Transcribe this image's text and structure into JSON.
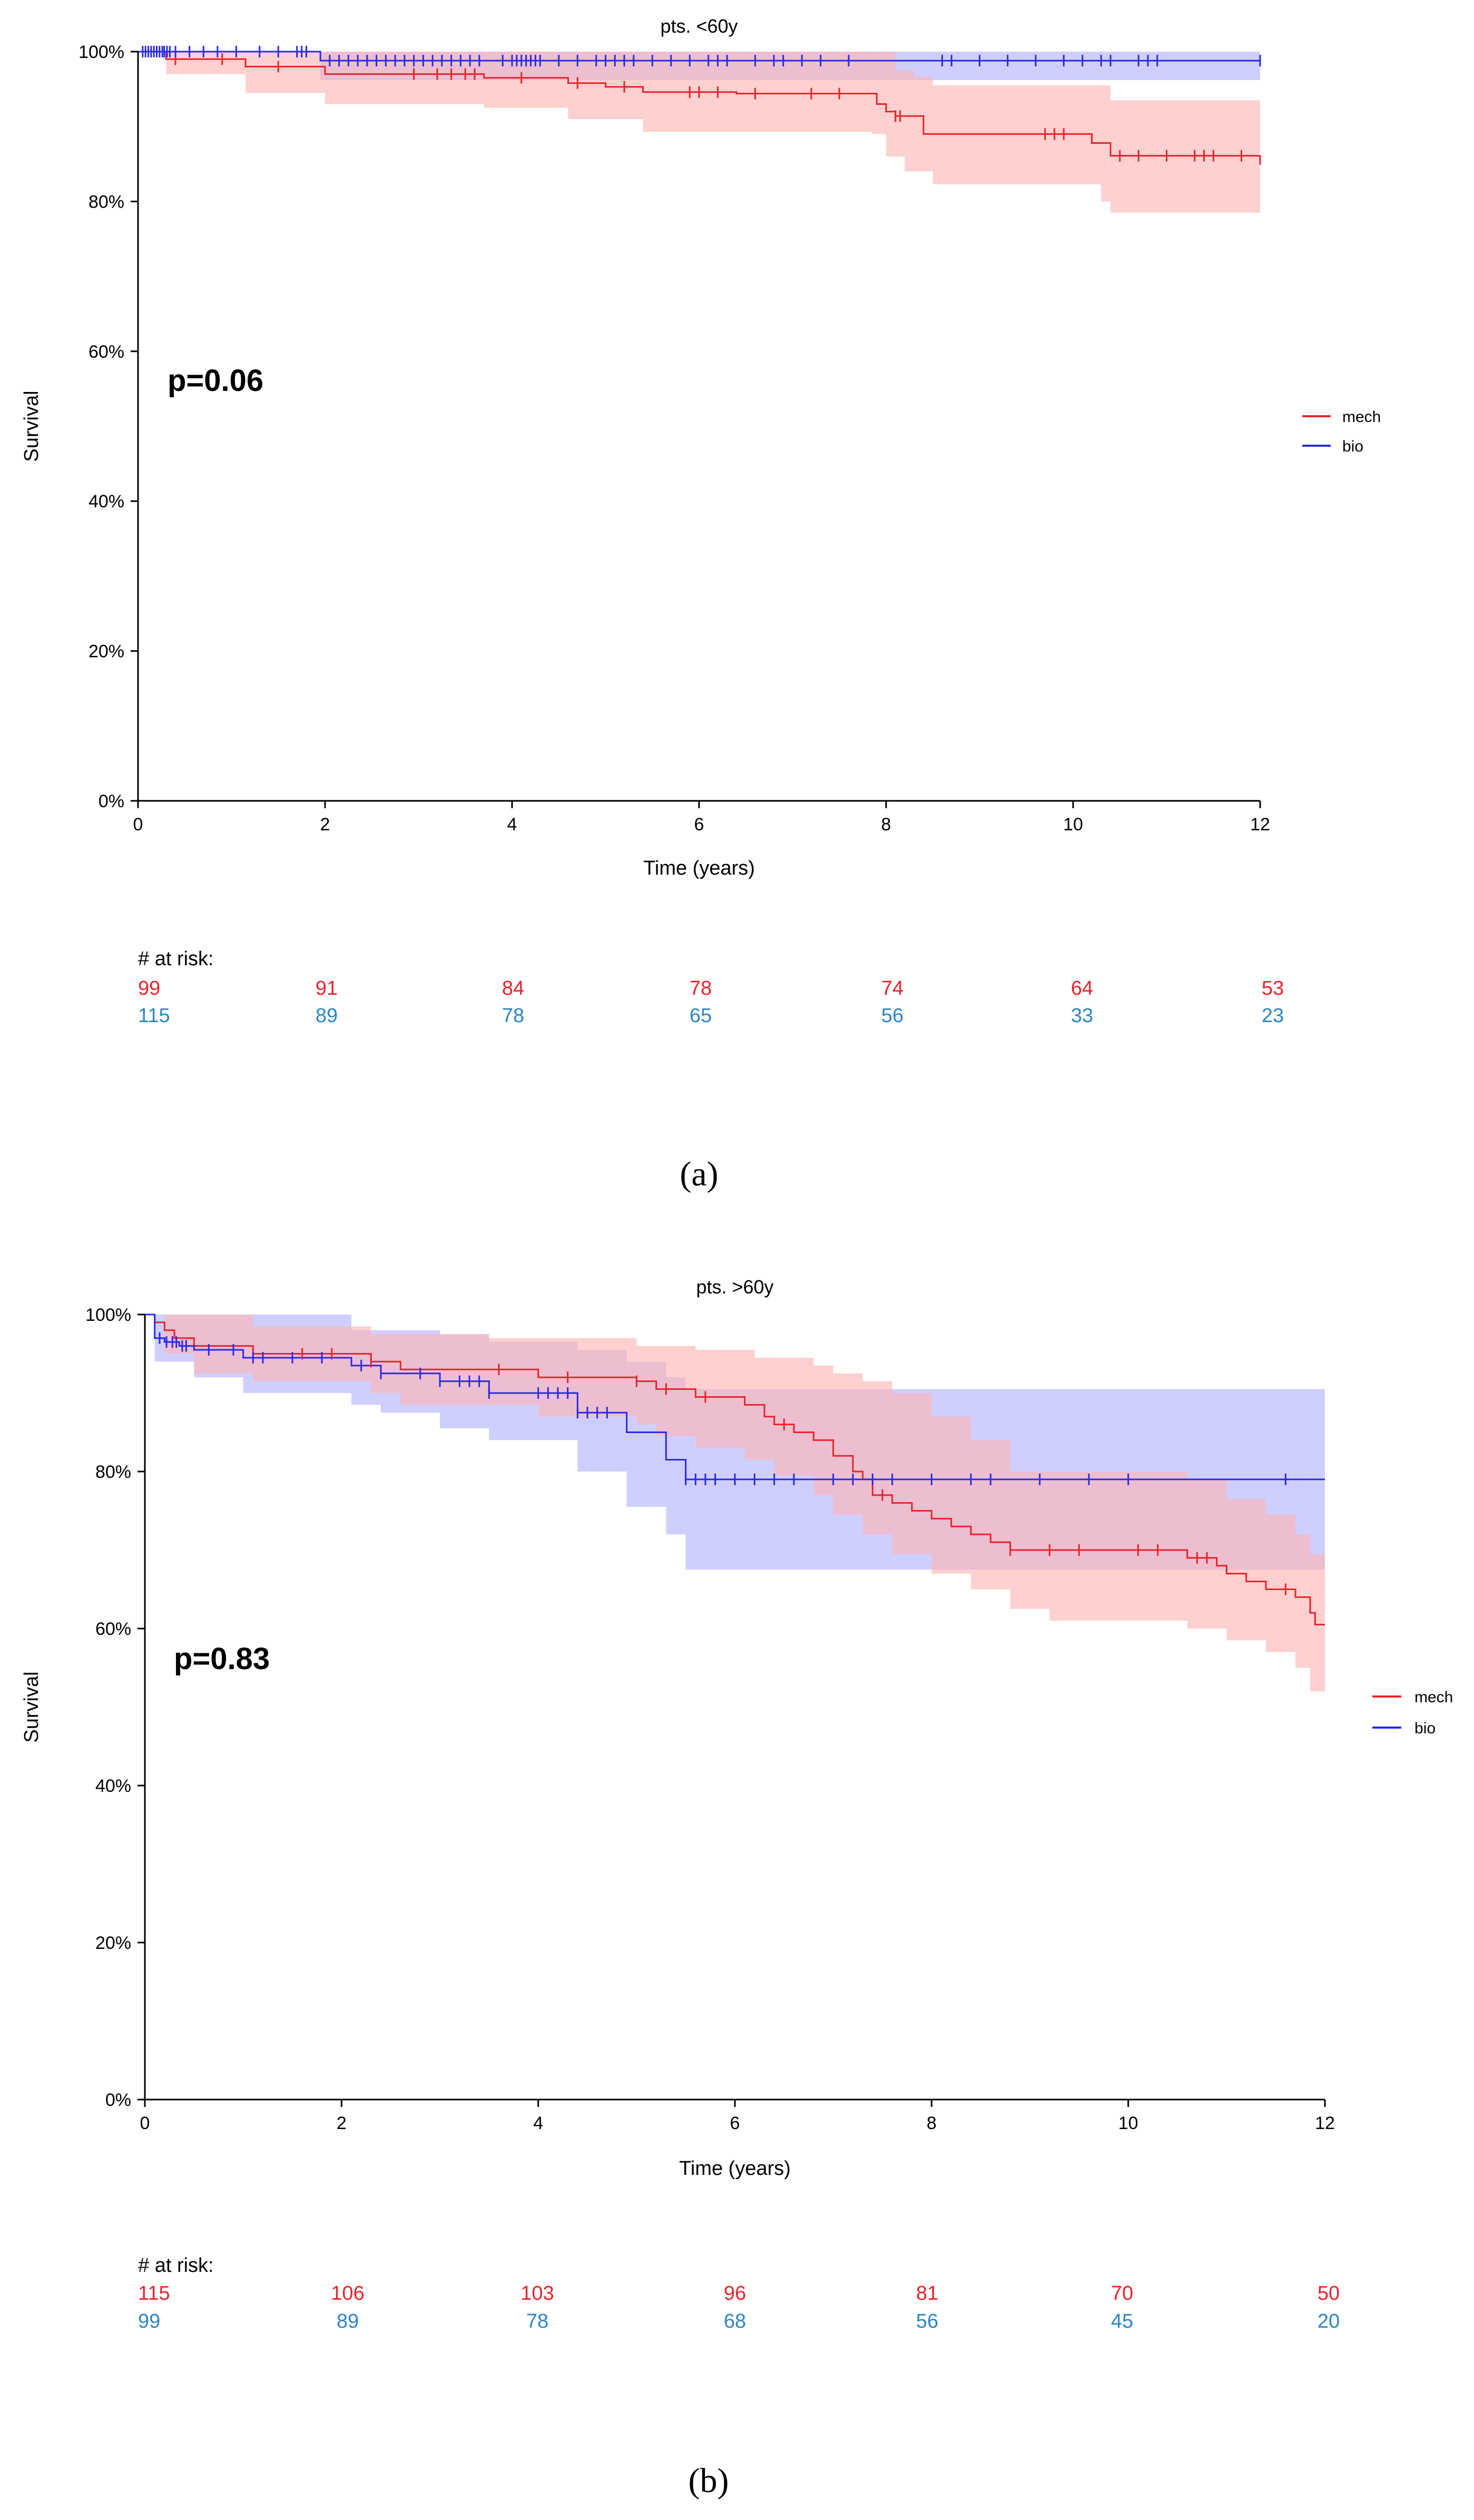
{
  "colors": {
    "mech": "#e8242b",
    "bio": "#2a2ae8",
    "mech_ci": "#ffb3b3",
    "bio_ci": "#b8b8ff",
    "risk_mech": "#e8242b",
    "risk_bio": "#2e86c1"
  },
  "chart_data": [
    {
      "type": "line",
      "subtype": "kaplan-meier",
      "panel_label": "(a)",
      "title": "pts. <60y",
      "xlabel": "Time (years)",
      "ylabel": "Survival",
      "xlim": [
        0,
        12
      ],
      "ylim": [
        0,
        1
      ],
      "x_ticks": [
        "0",
        "2",
        "4",
        "6",
        "8",
        "10",
        "12"
      ],
      "y_ticks": [
        "0%",
        "20%",
        "40%",
        "60%",
        "80%",
        "100%"
      ],
      "annotation": "p=0.06",
      "legend_position": "right",
      "legend": [
        "mech",
        "bio"
      ],
      "series": [
        {
          "name": "mech",
          "steps": [
            [
              0,
              1.0
            ],
            [
              0.3,
              0.99
            ],
            [
              1.15,
              0.98
            ],
            [
              2.0,
              0.97
            ],
            [
              3.7,
              0.965
            ],
            [
              4.6,
              0.958
            ],
            [
              5.0,
              0.953
            ],
            [
              5.4,
              0.946
            ],
            [
              6.4,
              0.944
            ],
            [
              7.9,
              0.93
            ],
            [
              8.0,
              0.92
            ],
            [
              8.1,
              0.914
            ],
            [
              8.4,
              0.89
            ],
            [
              10.2,
              0.878
            ],
            [
              10.4,
              0.861
            ],
            [
              12.0,
              0.849
            ]
          ],
          "upper": [
            [
              0,
              1.0
            ],
            [
              8.0,
              1.0
            ],
            [
              8.1,
              0.975
            ],
            [
              8.3,
              0.966
            ],
            [
              8.5,
              0.955
            ],
            [
              10.4,
              0.935
            ],
            [
              12.0,
              0.935
            ]
          ],
          "lower": [
            [
              0,
              1.0
            ],
            [
              0.3,
              0.97
            ],
            [
              1.15,
              0.945
            ],
            [
              2.0,
              0.93
            ],
            [
              3.7,
              0.925
            ],
            [
              4.6,
              0.91
            ],
            [
              5.4,
              0.893
            ],
            [
              7.85,
              0.89
            ],
            [
              8.0,
              0.86
            ],
            [
              8.2,
              0.84
            ],
            [
              8.5,
              0.823
            ],
            [
              10.3,
              0.8
            ],
            [
              10.4,
              0.785
            ],
            [
              12.0,
              0.785
            ]
          ],
          "censors": [
            0.4,
            0.9,
            1.5,
            2.95,
            3.2,
            3.35,
            3.5,
            3.6,
            4.1,
            4.7,
            5.2,
            5.9,
            6.0,
            6.2,
            6.6,
            7.2,
            7.5,
            8.1,
            8.15,
            9.7,
            9.8,
            9.9,
            10.5,
            10.7,
            11.0,
            11.3,
            11.4,
            11.5,
            11.8
          ]
        },
        {
          "name": "bio",
          "steps": [
            [
              0,
              1.0
            ],
            [
              1.95,
              0.988
            ],
            [
              12.0,
              0.988
            ]
          ],
          "upper": [
            [
              0,
              1.0
            ],
            [
              12.0,
              1.0
            ]
          ],
          "lower": [
            [
              0,
              1.0
            ],
            [
              1.95,
              0.962
            ],
            [
              12.0,
              0.962
            ]
          ],
          "censors": [
            0.05,
            0.08,
            0.11,
            0.14,
            0.17,
            0.2,
            0.23,
            0.26,
            0.28,
            0.31,
            0.34,
            0.4,
            0.55,
            0.7,
            0.85,
            1.05,
            1.3,
            1.5,
            1.7,
            1.75,
            1.8,
            2.05,
            2.15,
            2.25,
            2.35,
            2.45,
            2.55,
            2.65,
            2.75,
            2.85,
            2.95,
            3.05,
            3.15,
            3.25,
            3.35,
            3.45,
            3.55,
            3.65,
            3.9,
            4.0,
            4.05,
            4.1,
            4.15,
            4.2,
            4.25,
            4.3,
            4.5,
            4.7,
            4.9,
            5.0,
            5.1,
            5.2,
            5.3,
            5.5,
            5.7,
            5.9,
            6.1,
            6.2,
            6.3,
            6.6,
            6.8,
            6.9,
            7.1,
            7.3,
            7.6,
            8.6,
            8.7,
            9.0,
            9.3,
            9.6,
            9.9,
            10.1,
            10.3,
            10.4,
            10.7,
            10.8,
            10.9,
            12.0
          ]
        }
      ],
      "risk_table": {
        "header": "# at risk:",
        "mech": [
          "99",
          "91",
          "84",
          "78",
          "74",
          "64",
          "53"
        ],
        "bio": [
          "115",
          "89",
          "78",
          "65",
          "56",
          "33",
          "23"
        ]
      }
    },
    {
      "type": "line",
      "subtype": "kaplan-meier",
      "panel_label": "(b)",
      "title": "pts. >60y",
      "xlabel": "Time (years)",
      "ylabel": "Survival",
      "xlim": [
        0,
        12
      ],
      "ylim": [
        0,
        1
      ],
      "x_ticks": [
        "0",
        "2",
        "4",
        "6",
        "8",
        "10",
        "12"
      ],
      "y_ticks": [
        "0%",
        "20%",
        "40%",
        "60%",
        "80%",
        "100%"
      ],
      "annotation": "p=0.83",
      "legend_position": "right",
      "legend": [
        "mech",
        "bio"
      ],
      "series": [
        {
          "name": "mech",
          "steps": [
            [
              0,
              1.0
            ],
            [
              0.1,
              0.99
            ],
            [
              0.2,
              0.98
            ],
            [
              0.3,
              0.97
            ],
            [
              0.5,
              0.96
            ],
            [
              1.1,
              0.95
            ],
            [
              2.3,
              0.94
            ],
            [
              2.6,
              0.93
            ],
            [
              4.0,
              0.92
            ],
            [
              5.0,
              0.915
            ],
            [
              5.2,
              0.905
            ],
            [
              5.6,
              0.895
            ],
            [
              6.1,
              0.885
            ],
            [
              6.3,
              0.87
            ],
            [
              6.4,
              0.86
            ],
            [
              6.6,
              0.85
            ],
            [
              6.8,
              0.84
            ],
            [
              7.0,
              0.82
            ],
            [
              7.2,
              0.8
            ],
            [
              7.3,
              0.79
            ],
            [
              7.4,
              0.77
            ],
            [
              7.6,
              0.76
            ],
            [
              7.8,
              0.75
            ],
            [
              8.0,
              0.74
            ],
            [
              8.2,
              0.73
            ],
            [
              8.4,
              0.72
            ],
            [
              8.6,
              0.71
            ],
            [
              8.8,
              0.7
            ],
            [
              10.6,
              0.69
            ],
            [
              10.9,
              0.68
            ],
            [
              11.0,
              0.67
            ],
            [
              11.2,
              0.66
            ],
            [
              11.4,
              0.65
            ],
            [
              11.7,
              0.64
            ],
            [
              11.85,
              0.62
            ],
            [
              11.9,
              0.605
            ],
            [
              12.0,
              0.605
            ]
          ],
          "upper": [
            [
              0,
              1.0
            ],
            [
              1.1,
              0.985
            ],
            [
              2.3,
              0.975
            ],
            [
              3.5,
              0.97
            ],
            [
              5.0,
              0.96
            ],
            [
              5.6,
              0.955
            ],
            [
              6.2,
              0.945
            ],
            [
              6.8,
              0.935
            ],
            [
              7.0,
              0.925
            ],
            [
              7.3,
              0.915
            ],
            [
              7.6,
              0.9
            ],
            [
              8.0,
              0.87
            ],
            [
              8.4,
              0.84
            ],
            [
              8.8,
              0.8
            ],
            [
              10.6,
              0.79
            ],
            [
              11.0,
              0.765
            ],
            [
              11.4,
              0.745
            ],
            [
              11.7,
              0.72
            ],
            [
              11.85,
              0.695
            ],
            [
              12.0,
              0.695
            ]
          ],
          "lower": [
            [
              0,
              1.0
            ],
            [
              0.2,
              0.95
            ],
            [
              0.5,
              0.925
            ],
            [
              1.1,
              0.915
            ],
            [
              2.3,
              0.9
            ],
            [
              2.6,
              0.885
            ],
            [
              4.0,
              0.87
            ],
            [
              5.0,
              0.86
            ],
            [
              5.2,
              0.845
            ],
            [
              5.6,
              0.83
            ],
            [
              6.1,
              0.815
            ],
            [
              6.4,
              0.795
            ],
            [
              6.8,
              0.77
            ],
            [
              7.0,
              0.745
            ],
            [
              7.3,
              0.72
            ],
            [
              7.6,
              0.695
            ],
            [
              8.0,
              0.67
            ],
            [
              8.4,
              0.65
            ],
            [
              8.8,
              0.625
            ],
            [
              9.2,
              0.61
            ],
            [
              10.6,
              0.6
            ],
            [
              11.0,
              0.585
            ],
            [
              11.4,
              0.57
            ],
            [
              11.7,
              0.55
            ],
            [
              11.85,
              0.52
            ],
            [
              12.0,
              0.51
            ]
          ],
          "censors": [
            1.6,
            1.9,
            2.3,
            3.6,
            4.3,
            5.0,
            5.3,
            5.7,
            6.5,
            7.5,
            8.8,
            9.2,
            9.5,
            10.1,
            10.3,
            10.7,
            10.8,
            11.6
          ]
        },
        {
          "name": "bio",
          "steps": [
            [
              0,
              1.0
            ],
            [
              0.1,
              0.97
            ],
            [
              0.2,
              0.965
            ],
            [
              0.35,
              0.96
            ],
            [
              0.5,
              0.955
            ],
            [
              1.0,
              0.945
            ],
            [
              2.1,
              0.935
            ],
            [
              2.4,
              0.925
            ],
            [
              3.0,
              0.915
            ],
            [
              3.5,
              0.9
            ],
            [
              4.4,
              0.875
            ],
            [
              4.9,
              0.85
            ],
            [
              5.3,
              0.815
            ],
            [
              5.5,
              0.79
            ],
            [
              12.0,
              0.79
            ]
          ],
          "upper": [
            [
              0,
              1.0
            ],
            [
              2.1,
              0.98
            ],
            [
              3.0,
              0.975
            ],
            [
              3.5,
              0.965
            ],
            [
              4.4,
              0.955
            ],
            [
              4.9,
              0.94
            ],
            [
              5.3,
              0.92
            ],
            [
              5.5,
              0.905
            ],
            [
              12.0,
              0.905
            ]
          ],
          "lower": [
            [
              0,
              1.0
            ],
            [
              0.1,
              0.94
            ],
            [
              0.5,
              0.92
            ],
            [
              1.0,
              0.9
            ],
            [
              2.1,
              0.885
            ],
            [
              2.4,
              0.875
            ],
            [
              3.0,
              0.855
            ],
            [
              3.5,
              0.84
            ],
            [
              4.4,
              0.8
            ],
            [
              4.9,
              0.755
            ],
            [
              5.3,
              0.72
            ],
            [
              5.5,
              0.675
            ],
            [
              12.0,
              0.675
            ]
          ],
          "censors": [
            0.15,
            0.22,
            0.28,
            0.32,
            0.38,
            0.42,
            0.65,
            0.9,
            1.1,
            1.2,
            1.5,
            1.8,
            2.2,
            2.4,
            2.8,
            3.0,
            3.2,
            3.3,
            3.4,
            3.5,
            4.0,
            4.1,
            4.2,
            4.3,
            4.4,
            4.5,
            4.6,
            4.7,
            5.5,
            5.6,
            5.7,
            5.8,
            6.0,
            6.2,
            6.4,
            6.6,
            7.0,
            7.2,
            7.4,
            7.6,
            8.0,
            8.4,
            8.6,
            9.1,
            9.6,
            10.0,
            11.6
          ]
        }
      ],
      "risk_table": {
        "header": "# at risk:",
        "mech": [
          "115",
          "106",
          "103",
          "96",
          "81",
          "70",
          "50"
        ],
        "bio": [
          "99",
          "89",
          "78",
          "68",
          "56",
          "45",
          "20"
        ]
      }
    }
  ]
}
